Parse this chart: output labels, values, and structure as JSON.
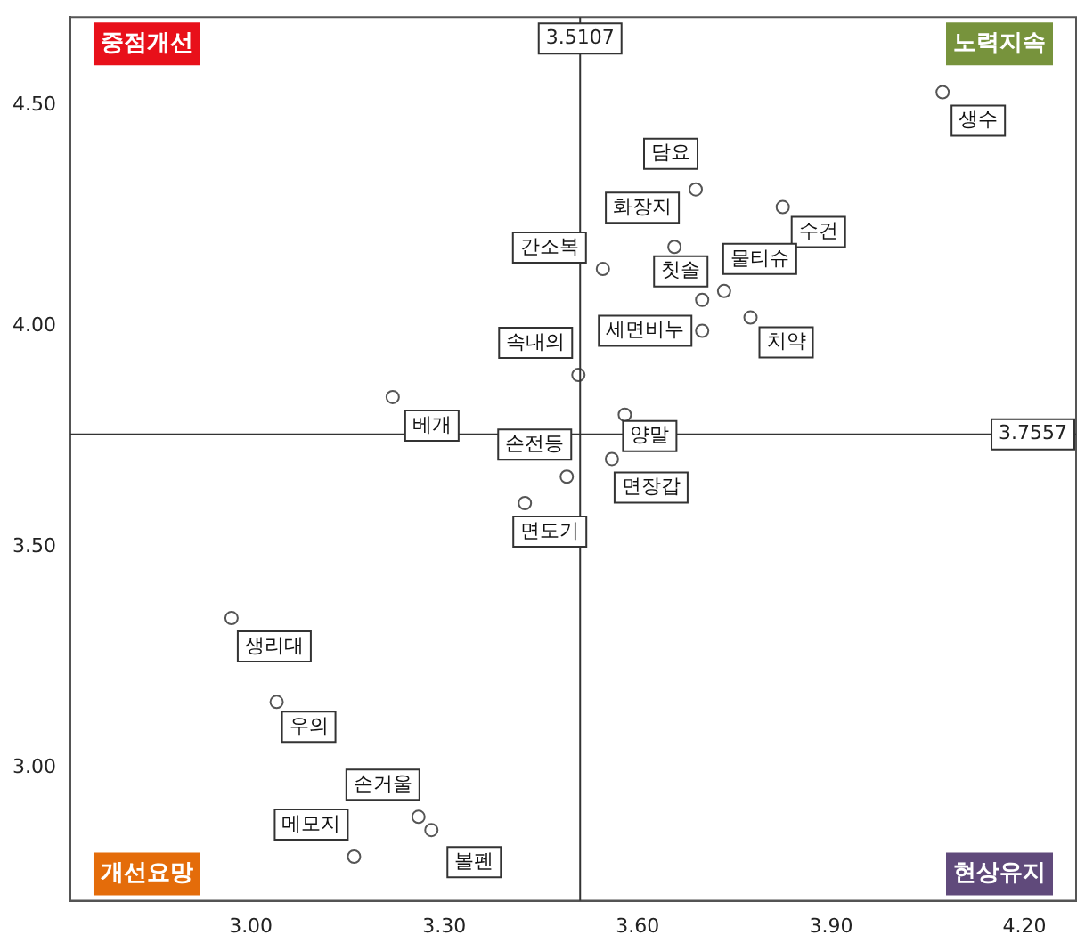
{
  "chart_data": {
    "type": "scatter",
    "marker": "circle",
    "grid": false,
    "legend": false,
    "x": [
      4.073,
      3.69,
      3.825,
      3.657,
      3.546,
      3.734,
      3.7,
      3.7,
      3.775,
      3.508,
      3.22,
      3.58,
      3.56,
      3.49,
      3.425,
      2.97,
      3.04,
      3.26,
      3.28,
      3.16
    ],
    "values": [
      4.53,
      4.31,
      4.27,
      4.18,
      4.13,
      4.08,
      4.06,
      3.99,
      4.02,
      3.89,
      3.84,
      3.8,
      3.7,
      3.66,
      3.6,
      3.34,
      3.15,
      2.89,
      2.86,
      2.8
    ],
    "color": "#555555",
    "xlim": [
      2.72,
      4.28
    ],
    "ylim": [
      2.7,
      4.7
    ],
    "xticks": [
      {
        "value": 3.0,
        "label": "3.00"
      },
      {
        "value": 3.3,
        "label": "3.30"
      },
      {
        "value": 3.6,
        "label": "3.60"
      },
      {
        "value": 3.9,
        "label": "3.90"
      },
      {
        "value": 4.2,
        "label": "4.20"
      }
    ],
    "yticks": [
      {
        "value": 3.0,
        "label": "3.00"
      },
      {
        "value": 3.5,
        "label": "3.50"
      },
      {
        "value": 4.0,
        "label": "4.00"
      },
      {
        "value": 4.5,
        "label": "4.50"
      }
    ],
    "ref_lines": [
      {
        "axis": "x",
        "value": 3.5107,
        "label": "3.5107"
      },
      {
        "axis": "y",
        "value": 3.7557,
        "label": "3.7557"
      }
    ],
    "annotations": [
      {
        "text": "생수",
        "x": 4.073,
        "y": 4.53
      },
      {
        "text": "담요",
        "x": 3.69,
        "y": 4.31
      },
      {
        "text": "수건",
        "x": 3.825,
        "y": 4.27
      },
      {
        "text": "화장지",
        "x": 3.657,
        "y": 4.18
      },
      {
        "text": "간소복",
        "x": 3.546,
        "y": 4.13
      },
      {
        "text": "물티슈",
        "x": 3.734,
        "y": 4.08
      },
      {
        "text": "칫솔",
        "x": 3.7,
        "y": 4.06
      },
      {
        "text": "세면비누",
        "x": 3.7,
        "y": 3.99
      },
      {
        "text": "치약",
        "x": 3.775,
        "y": 4.02
      },
      {
        "text": "속내의",
        "x": 3.508,
        "y": 3.89
      },
      {
        "text": "베개",
        "x": 3.22,
        "y": 3.84
      },
      {
        "text": "양말",
        "x": 3.58,
        "y": 3.8
      },
      {
        "text": "면장갑",
        "x": 3.56,
        "y": 3.7
      },
      {
        "text": "손전등",
        "x": 3.49,
        "y": 3.66
      },
      {
        "text": "면도기",
        "x": 3.425,
        "y": 3.6
      },
      {
        "text": "생리대",
        "x": 2.97,
        "y": 3.34
      },
      {
        "text": "우의",
        "x": 3.04,
        "y": 3.15
      },
      {
        "text": "손거울",
        "x": 3.26,
        "y": 2.89
      },
      {
        "text": "볼펜",
        "x": 3.28,
        "y": 2.86
      },
      {
        "text": "메모지",
        "x": 3.16,
        "y": 2.8
      },
      "중점개선",
      "노력지속",
      "개선요망",
      "현상유지"
    ]
  }
}
